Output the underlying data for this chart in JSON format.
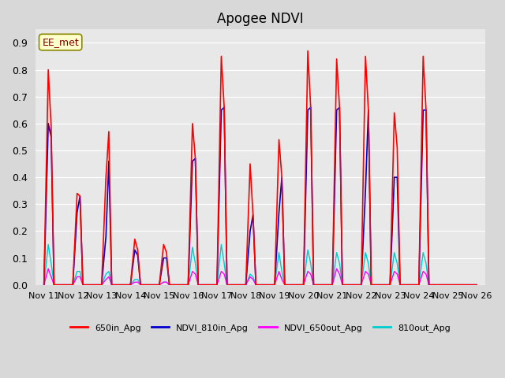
{
  "title": "Apogee NDVI",
  "annotation": "EE_met",
  "ylim": [
    0.0,
    0.95
  ],
  "yticks": [
    0.0,
    0.1,
    0.2,
    0.3,
    0.4,
    0.5,
    0.6,
    0.7,
    0.8,
    0.9
  ],
  "xtick_positions": [
    0,
    1,
    2,
    3,
    4,
    5,
    6,
    7,
    8,
    9,
    10,
    11,
    12,
    13,
    14,
    15
  ],
  "xtick_labels": [
    "Nov 11",
    "Nov 12",
    "Nov 13",
    "Nov 14",
    "Nov 15",
    "Nov 16",
    "Nov 17",
    "Nov 18",
    "Nov 19",
    "Nov 20",
    "Nov 21",
    "Nov 22",
    "Nov 23",
    "Nov 24",
    "Nov 25",
    "Nov 26"
  ],
  "legend_labels": [
    "650in_Apg",
    "NDVI_810in_Apg",
    "NDVI_650out_Apg",
    "810out_Apg"
  ],
  "legend_colors": [
    "#ff0000",
    "#0000cc",
    "#ff00ff",
    "#00cccc"
  ],
  "line_colors": {
    "red": "#ff0000",
    "blue": "#0000cc",
    "magenta": "#ff00ff",
    "cyan": "#00cccc"
  },
  "background_color": "#d8d8d8",
  "plot_bg_color": "#e8e8e8",
  "red_data": [
    [
      0.0,
      0.0
    ],
    [
      0.15,
      0.8
    ],
    [
      0.25,
      0.59
    ],
    [
      0.35,
      0.0
    ],
    [
      1.0,
      0.0
    ],
    [
      1.15,
      0.34
    ],
    [
      1.25,
      0.33
    ],
    [
      1.35,
      0.0
    ],
    [
      2.0,
      0.0
    ],
    [
      2.15,
      0.4
    ],
    [
      2.25,
      0.57
    ],
    [
      2.35,
      0.0
    ],
    [
      3.0,
      0.0
    ],
    [
      3.15,
      0.17
    ],
    [
      3.25,
      0.13
    ],
    [
      3.35,
      0.0
    ],
    [
      4.0,
      0.0
    ],
    [
      4.15,
      0.15
    ],
    [
      4.25,
      0.12
    ],
    [
      4.35,
      0.0
    ],
    [
      5.0,
      0.0
    ],
    [
      5.15,
      0.6
    ],
    [
      5.25,
      0.47
    ],
    [
      5.35,
      0.0
    ],
    [
      6.0,
      0.0
    ],
    [
      6.15,
      0.85
    ],
    [
      6.25,
      0.66
    ],
    [
      6.35,
      0.0
    ],
    [
      7.0,
      0.0
    ],
    [
      7.15,
      0.45
    ],
    [
      7.25,
      0.26
    ],
    [
      7.35,
      0.0
    ],
    [
      8.0,
      0.0
    ],
    [
      8.15,
      0.54
    ],
    [
      8.25,
      0.4
    ],
    [
      8.35,
      0.0
    ],
    [
      9.0,
      0.0
    ],
    [
      9.15,
      0.87
    ],
    [
      9.25,
      0.66
    ],
    [
      9.35,
      0.0
    ],
    [
      10.0,
      0.0
    ],
    [
      10.15,
      0.84
    ],
    [
      10.25,
      0.66
    ],
    [
      10.35,
      0.0
    ],
    [
      11.0,
      0.0
    ],
    [
      11.15,
      0.85
    ],
    [
      11.25,
      0.65
    ],
    [
      11.35,
      0.0
    ],
    [
      12.0,
      0.0
    ],
    [
      12.15,
      0.64
    ],
    [
      12.25,
      0.51
    ],
    [
      12.35,
      0.0
    ],
    [
      13.0,
      0.0
    ],
    [
      13.15,
      0.85
    ],
    [
      13.25,
      0.65
    ],
    [
      13.35,
      0.0
    ],
    [
      15.0,
      0.0
    ]
  ],
  "blue_data": [
    [
      0.0,
      0.0
    ],
    [
      0.15,
      0.6
    ],
    [
      0.25,
      0.55
    ],
    [
      0.35,
      0.0
    ],
    [
      1.0,
      0.0
    ],
    [
      1.15,
      0.27
    ],
    [
      1.25,
      0.33
    ],
    [
      1.35,
      0.0
    ],
    [
      2.0,
      0.0
    ],
    [
      2.15,
      0.18
    ],
    [
      2.25,
      0.46
    ],
    [
      2.35,
      0.0
    ],
    [
      3.0,
      0.0
    ],
    [
      3.15,
      0.13
    ],
    [
      3.25,
      0.11
    ],
    [
      3.35,
      0.0
    ],
    [
      4.0,
      0.0
    ],
    [
      4.15,
      0.1
    ],
    [
      4.25,
      0.1
    ],
    [
      4.35,
      0.0
    ],
    [
      5.0,
      0.0
    ],
    [
      5.15,
      0.46
    ],
    [
      5.25,
      0.47
    ],
    [
      5.35,
      0.0
    ],
    [
      6.0,
      0.0
    ],
    [
      6.15,
      0.65
    ],
    [
      6.25,
      0.66
    ],
    [
      6.35,
      0.0
    ],
    [
      7.0,
      0.0
    ],
    [
      7.15,
      0.2
    ],
    [
      7.25,
      0.26
    ],
    [
      7.35,
      0.0
    ],
    [
      8.0,
      0.0
    ],
    [
      8.15,
      0.27
    ],
    [
      8.25,
      0.4
    ],
    [
      8.35,
      0.0
    ],
    [
      9.0,
      0.0
    ],
    [
      9.15,
      0.65
    ],
    [
      9.25,
      0.66
    ],
    [
      9.35,
      0.0
    ],
    [
      10.0,
      0.0
    ],
    [
      10.15,
      0.65
    ],
    [
      10.25,
      0.66
    ],
    [
      10.35,
      0.0
    ],
    [
      11.0,
      0.0
    ],
    [
      11.15,
      0.35
    ],
    [
      11.25,
      0.65
    ],
    [
      11.35,
      0.0
    ],
    [
      12.0,
      0.0
    ],
    [
      12.15,
      0.4
    ],
    [
      12.25,
      0.4
    ],
    [
      12.35,
      0.0
    ],
    [
      13.0,
      0.0
    ],
    [
      13.15,
      0.65
    ],
    [
      13.25,
      0.65
    ],
    [
      13.35,
      0.0
    ],
    [
      15.0,
      0.0
    ]
  ],
  "magenta_data": [
    [
      0.0,
      0.0
    ],
    [
      0.15,
      0.06
    ],
    [
      0.25,
      0.03
    ],
    [
      0.35,
      0.0
    ],
    [
      1.0,
      0.0
    ],
    [
      1.15,
      0.03
    ],
    [
      1.25,
      0.03
    ],
    [
      1.35,
      0.0
    ],
    [
      2.0,
      0.0
    ],
    [
      2.15,
      0.02
    ],
    [
      2.25,
      0.03
    ],
    [
      2.35,
      0.0
    ],
    [
      3.0,
      0.0
    ],
    [
      3.15,
      0.01
    ],
    [
      3.25,
      0.01
    ],
    [
      3.35,
      0.0
    ],
    [
      4.0,
      0.0
    ],
    [
      4.15,
      0.01
    ],
    [
      4.25,
      0.01
    ],
    [
      4.35,
      0.0
    ],
    [
      5.0,
      0.0
    ],
    [
      5.15,
      0.05
    ],
    [
      5.25,
      0.04
    ],
    [
      5.35,
      0.0
    ],
    [
      6.0,
      0.0
    ],
    [
      6.15,
      0.05
    ],
    [
      6.25,
      0.04
    ],
    [
      6.35,
      0.0
    ],
    [
      7.0,
      0.0
    ],
    [
      7.15,
      0.03
    ],
    [
      7.25,
      0.02
    ],
    [
      7.35,
      0.0
    ],
    [
      8.0,
      0.0
    ],
    [
      8.15,
      0.05
    ],
    [
      8.25,
      0.02
    ],
    [
      8.35,
      0.0
    ],
    [
      9.0,
      0.0
    ],
    [
      9.15,
      0.05
    ],
    [
      9.25,
      0.04
    ],
    [
      9.35,
      0.0
    ],
    [
      10.0,
      0.0
    ],
    [
      10.15,
      0.06
    ],
    [
      10.25,
      0.04
    ],
    [
      10.35,
      0.0
    ],
    [
      11.0,
      0.0
    ],
    [
      11.15,
      0.05
    ],
    [
      11.25,
      0.04
    ],
    [
      11.35,
      0.0
    ],
    [
      12.0,
      0.0
    ],
    [
      12.15,
      0.05
    ],
    [
      12.25,
      0.04
    ],
    [
      12.35,
      0.0
    ],
    [
      13.0,
      0.0
    ],
    [
      13.15,
      0.05
    ],
    [
      13.25,
      0.04
    ],
    [
      13.35,
      0.0
    ],
    [
      15.0,
      0.0
    ]
  ],
  "cyan_data": [
    [
      0.0,
      0.0
    ],
    [
      0.15,
      0.15
    ],
    [
      0.25,
      0.08
    ],
    [
      0.35,
      0.0
    ],
    [
      1.0,
      0.0
    ],
    [
      1.15,
      0.05
    ],
    [
      1.25,
      0.05
    ],
    [
      1.35,
      0.0
    ],
    [
      2.0,
      0.0
    ],
    [
      2.15,
      0.04
    ],
    [
      2.25,
      0.05
    ],
    [
      2.35,
      0.0
    ],
    [
      3.0,
      0.0
    ],
    [
      3.15,
      0.02
    ],
    [
      3.25,
      0.02
    ],
    [
      3.35,
      0.0
    ],
    [
      4.0,
      0.0
    ],
    [
      4.15,
      0.01
    ],
    [
      4.25,
      0.01
    ],
    [
      4.35,
      0.0
    ],
    [
      5.0,
      0.0
    ],
    [
      5.15,
      0.14
    ],
    [
      5.25,
      0.08
    ],
    [
      5.35,
      0.0
    ],
    [
      6.0,
      0.0
    ],
    [
      6.15,
      0.15
    ],
    [
      6.25,
      0.08
    ],
    [
      6.35,
      0.0
    ],
    [
      7.0,
      0.0
    ],
    [
      7.15,
      0.04
    ],
    [
      7.25,
      0.03
    ],
    [
      7.35,
      0.0
    ],
    [
      8.0,
      0.0
    ],
    [
      8.15,
      0.12
    ],
    [
      8.25,
      0.05
    ],
    [
      8.35,
      0.0
    ],
    [
      9.0,
      0.0
    ],
    [
      9.15,
      0.13
    ],
    [
      9.25,
      0.08
    ],
    [
      9.35,
      0.0
    ],
    [
      10.0,
      0.0
    ],
    [
      10.15,
      0.12
    ],
    [
      10.25,
      0.08
    ],
    [
      10.35,
      0.0
    ],
    [
      11.0,
      0.0
    ],
    [
      11.15,
      0.12
    ],
    [
      11.25,
      0.08
    ],
    [
      11.35,
      0.0
    ],
    [
      12.0,
      0.0
    ],
    [
      12.15,
      0.12
    ],
    [
      12.25,
      0.08
    ],
    [
      12.35,
      0.0
    ],
    [
      13.0,
      0.0
    ],
    [
      13.15,
      0.12
    ],
    [
      13.25,
      0.08
    ],
    [
      13.35,
      0.0
    ],
    [
      15.0,
      0.0
    ]
  ]
}
